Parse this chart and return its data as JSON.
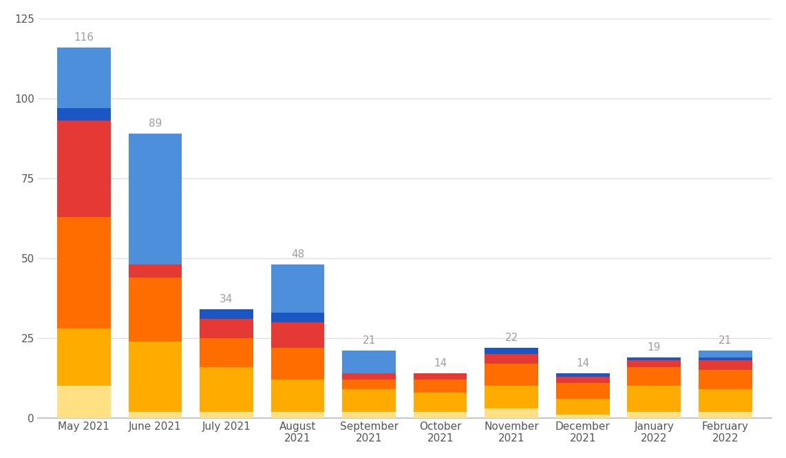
{
  "categories": [
    "May 2021",
    "June 2021",
    "July 2021",
    "August\n2021",
    "September\n2021",
    "October\n2021",
    "November\n2021",
    "December\n2021",
    "January\n2022",
    "February\n2022"
  ],
  "totals": [
    116,
    89,
    34,
    48,
    21,
    14,
    22,
    14,
    19,
    21
  ],
  "segments": [
    [
      10,
      2,
      2,
      2,
      2,
      2,
      3,
      1,
      2,
      2
    ],
    [
      18,
      22,
      14,
      10,
      7,
      6,
      7,
      5,
      8,
      7
    ],
    [
      35,
      20,
      9,
      10,
      3,
      4,
      7,
      5,
      6,
      6
    ],
    [
      30,
      4,
      6,
      8,
      2,
      2,
      3,
      2,
      2,
      3
    ],
    [
      4,
      0,
      3,
      3,
      0,
      0,
      2,
      1,
      1,
      1
    ],
    [
      19,
      41,
      0,
      15,
      7,
      0,
      0,
      0,
      0,
      2
    ]
  ],
  "colors": [
    "#FFE082",
    "#FFAB00",
    "#FF6D00",
    "#E53935",
    "#1A56C4",
    "#4D8FDB"
  ],
  "ylim": [
    0,
    125
  ],
  "yticks": [
    0,
    25,
    50,
    75,
    100,
    125
  ],
  "background_color": "#ffffff",
  "grid_color": "#e0e0e0",
  "label_color": "#9e9e9e",
  "bar_width": 0.75,
  "figsize": [
    11.42,
    6.65
  ],
  "dpi": 100
}
